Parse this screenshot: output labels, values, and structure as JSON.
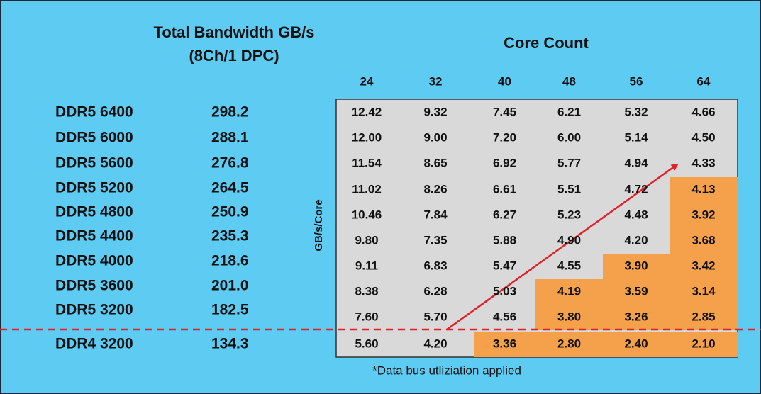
{
  "title": {
    "line1": "Total Bandwidth GB/s",
    "line2": "(8Ch/1 DPC)"
  },
  "column_header": "Core Count",
  "row_axis_label": "GB/s/Core",
  "columns": [
    "24",
    "32",
    "40",
    "48",
    "56",
    "64"
  ],
  "rows": [
    {
      "memory": "DDR5 6400",
      "bandwidth": "298.2",
      "cells": [
        "12.42",
        "9.32",
        "7.45",
        "6.21",
        "5.32",
        "4.66"
      ]
    },
    {
      "memory": "DDR5 6000",
      "bandwidth": "288.1",
      "cells": [
        "12.00",
        "9.00",
        "7.20",
        "6.00",
        "5.14",
        "4.50"
      ]
    },
    {
      "memory": "DDR5 5600",
      "bandwidth": "276.8",
      "cells": [
        "11.54",
        "8.65",
        "6.92",
        "5.77",
        "4.94",
        "4.33"
      ]
    },
    {
      "memory": "DDR5 5200",
      "bandwidth": "264.5",
      "cells": [
        "11.02",
        "8.26",
        "6.61",
        "5.51",
        "4.72",
        "4.13"
      ]
    },
    {
      "memory": "DDR5 4800",
      "bandwidth": "250.9",
      "cells": [
        "10.46",
        "7.84",
        "6.27",
        "5.23",
        "4.48",
        "3.92"
      ]
    },
    {
      "memory": "DDR5 4400",
      "bandwidth": "235.3",
      "cells": [
        "9.80",
        "7.35",
        "5.88",
        "4.90",
        "4.20",
        "3.68"
      ]
    },
    {
      "memory": "DDR5 4000",
      "bandwidth": "218.6",
      "cells": [
        "9.11",
        "6.83",
        "5.47",
        "4.55",
        "3.90",
        "3.42"
      ]
    },
    {
      "memory": "DDR5 3600",
      "bandwidth": "201.0",
      "cells": [
        "8.38",
        "6.28",
        "5.03",
        "4.19",
        "3.59",
        "3.14"
      ]
    },
    {
      "memory": "DDR5 3200",
      "bandwidth": "182.5",
      "cells": [
        "7.60",
        "5.70",
        "4.56",
        "3.80",
        "3.26",
        "2.85"
      ]
    },
    {
      "memory": "DDR4 3200",
      "bandwidth": "134.3",
      "cells": [
        "5.60",
        "4.20",
        "3.36",
        "2.80",
        "2.40",
        "2.10"
      ]
    }
  ],
  "footnote": "*Data bus utliziation applied"
}
